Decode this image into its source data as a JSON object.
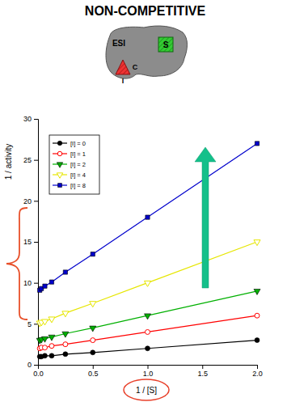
{
  "chart_data": {
    "type": "line",
    "title": "NON-COMPETITIVE",
    "annotations": [
      "ESI",
      "S",
      "C",
      "I"
    ],
    "x_label": "1 / [S]",
    "y_label": "1 / activity",
    "x": [
      0.016,
      0.031,
      0.0625,
      0.125,
      0.25,
      0.5,
      1,
      2
    ],
    "series": [
      {
        "name": "[I] = 0",
        "color": "#000000",
        "marker": "circle",
        "line_style": "solid",
        "values": [
          1.0,
          1.0,
          1.1,
          1.1,
          1.3,
          1.5,
          2,
          3
        ]
      },
      {
        "name": "[I] = 1",
        "color": "#ff0000",
        "marker": "circle-open",
        "line_style": "solid",
        "values": [
          2.0,
          2.1,
          2.1,
          2.3,
          2.5,
          3,
          4,
          6
        ]
      },
      {
        "name": "[I] = 2",
        "color": "#00b000",
        "marker": "triangle-down",
        "line_style": "solid",
        "values": [
          3.0,
          3.1,
          3.2,
          3.4,
          3.8,
          4.5,
          6,
          9
        ]
      },
      {
        "name": "[I] = 4",
        "color": "#e6e600",
        "marker": "triangle-down-open",
        "line_style": "solid",
        "values": [
          5.1,
          5.2,
          5.3,
          5.6,
          6.3,
          7.5,
          10,
          15
        ]
      },
      {
        "name": "[I] = 8",
        "color": "#0000cc",
        "marker": "square",
        "line_style": "solid",
        "values": [
          9.1,
          9.3,
          9.6,
          10.1,
          11.3,
          13.5,
          18,
          27
        ]
      }
    ],
    "xlim": [
      0,
      2
    ],
    "xticks": [
      {
        "value": 0,
        "label": "0.0"
      },
      {
        "value": 0.5,
        "label": "0.5"
      },
      {
        "value": 1,
        "label": "1.0"
      },
      {
        "value": 1.5,
        "label": "1.5"
      },
      {
        "value": 2,
        "label": "2.0"
      }
    ],
    "ylim": [
      0,
      30
    ],
    "yticks": [
      0,
      5,
      10,
      15,
      20,
      25,
      30
    ],
    "grid": false,
    "legend": "upper left"
  }
}
